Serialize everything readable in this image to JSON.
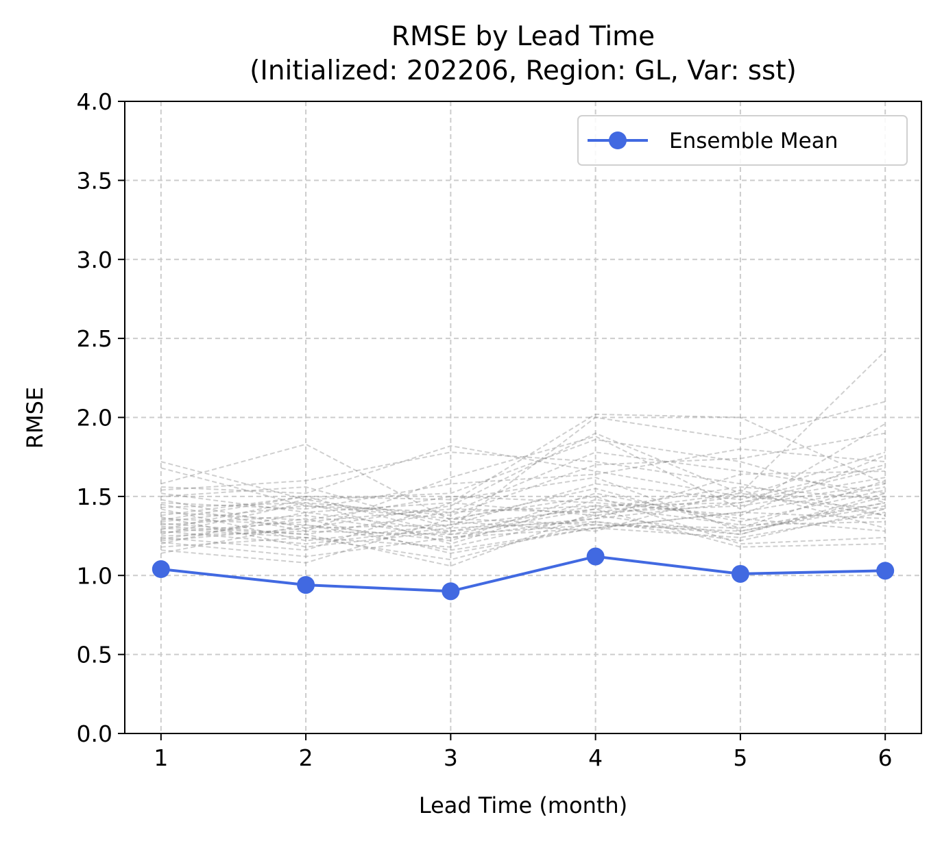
{
  "chart_data": {
    "type": "line",
    "title": "RMSE by Lead Time",
    "subtitle": "(Initialized: 202206, Region: GL, Var: sst)",
    "xlabel": "Lead Time (month)",
    "ylabel": "RMSE",
    "xlim": [
      0.75,
      6.25
    ],
    "ylim": [
      0.0,
      4.0
    ],
    "x": [
      1,
      2,
      3,
      4,
      5,
      6
    ],
    "x_ticks": [
      "1",
      "2",
      "3",
      "4",
      "5",
      "6"
    ],
    "y_ticks": [
      "0.0",
      "0.5",
      "1.0",
      "1.5",
      "2.0",
      "2.5",
      "3.0",
      "3.5",
      "4.0"
    ],
    "grid": true,
    "legend_position": "top-right",
    "series": [
      {
        "name": "Ensemble Mean",
        "color": "#4169E1",
        "style": "solid-with-markers",
        "values": [
          1.04,
          0.94,
          0.9,
          1.12,
          1.01,
          1.03
        ]
      }
    ],
    "ensemble_members": {
      "color": "#808080",
      "style": "dashed",
      "members": [
        [
          1.72,
          1.48,
          1.52,
          1.86,
          1.72,
          1.46
        ],
        [
          1.68,
          1.44,
          1.4,
          1.78,
          1.66,
          1.52
        ],
        [
          1.58,
          1.83,
          1.35,
          1.55,
          1.3,
          1.6
        ],
        [
          1.56,
          1.52,
          1.82,
          1.66,
          1.5,
          1.42
        ],
        [
          1.54,
          1.6,
          1.78,
          1.72,
          1.58,
          1.38
        ],
        [
          1.52,
          1.4,
          1.46,
          2.02,
          2.0,
          1.58
        ],
        [
          1.5,
          1.56,
          1.3,
          2.0,
          1.86,
          2.1
        ],
        [
          1.48,
          1.3,
          1.44,
          1.9,
          1.52,
          2.42
        ],
        [
          1.46,
          1.42,
          1.58,
          1.64,
          1.8,
          1.72
        ],
        [
          1.45,
          1.28,
          1.62,
          1.88,
          1.42,
          1.96
        ],
        [
          1.43,
          1.46,
          1.38,
          1.7,
          1.74,
          1.9
        ],
        [
          1.42,
          1.22,
          1.32,
          1.58,
          1.48,
          1.7
        ],
        [
          1.4,
          1.35,
          1.5,
          1.46,
          1.38,
          1.76
        ],
        [
          1.38,
          1.5,
          1.26,
          1.42,
          1.56,
          1.48
        ],
        [
          1.37,
          1.18,
          1.28,
          1.36,
          1.64,
          1.66
        ],
        [
          1.36,
          1.32,
          1.22,
          1.52,
          1.34,
          1.54
        ],
        [
          1.34,
          1.44,
          1.36,
          1.32,
          1.28,
          1.44
        ],
        [
          1.33,
          1.26,
          1.4,
          1.44,
          1.46,
          1.62
        ],
        [
          1.32,
          1.38,
          1.24,
          1.3,
          1.4,
          1.36
        ],
        [
          1.3,
          1.24,
          1.18,
          1.38,
          1.26,
          1.5
        ],
        [
          1.29,
          1.48,
          1.34,
          1.28,
          1.54,
          1.3
        ],
        [
          1.28,
          1.2,
          1.3,
          1.34,
          1.22,
          1.42
        ],
        [
          1.27,
          1.34,
          1.42,
          1.4,
          1.44,
          1.58
        ],
        [
          1.26,
          1.46,
          1.2,
          1.48,
          1.36,
          1.28
        ],
        [
          1.25,
          1.28,
          1.26,
          1.32,
          1.3,
          1.46
        ],
        [
          1.24,
          1.16,
          1.46,
          1.38,
          1.5,
          1.78
        ],
        [
          1.23,
          1.36,
          1.14,
          1.3,
          1.24,
          1.4
        ],
        [
          1.22,
          1.3,
          1.32,
          1.42,
          1.18,
          1.2
        ],
        [
          1.21,
          1.12,
          1.24,
          1.36,
          1.46,
          1.68
        ],
        [
          1.2,
          1.4,
          1.28,
          1.44,
          1.32,
          1.34
        ],
        [
          1.18,
          1.24,
          1.1,
          1.34,
          1.26,
          1.52
        ],
        [
          1.16,
          1.08,
          1.36,
          1.5,
          1.2,
          1.24
        ],
        [
          1.14,
          1.32,
          1.16,
          1.3,
          1.4,
          1.56
        ],
        [
          1.35,
          1.5,
          1.48,
          1.62,
          1.28,
          1.46
        ],
        [
          1.31,
          1.26,
          1.06,
          1.4,
          1.52,
          1.38
        ]
      ]
    }
  }
}
